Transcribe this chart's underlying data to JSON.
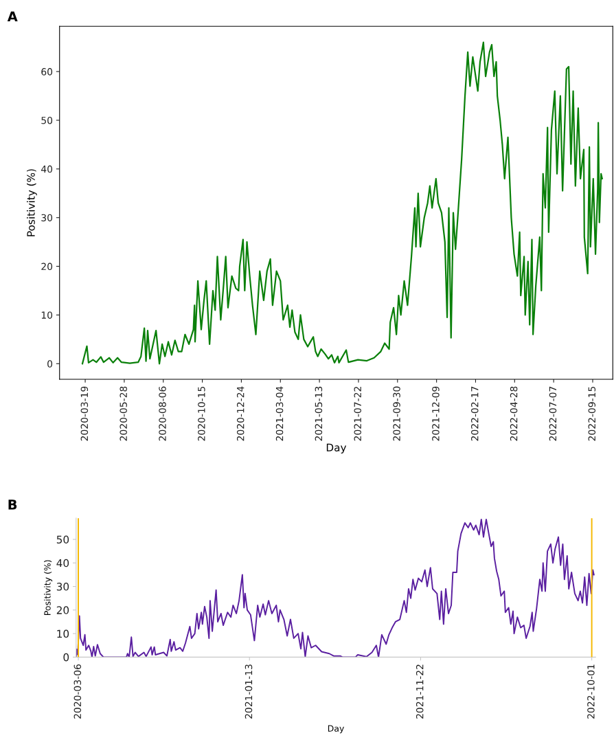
{
  "chart_data": [
    {
      "type": "line",
      "xlabel": "Day",
      "ylabel": "Positivity (%)",
      "annotations": [
        "A"
      ],
      "color": "#0a800a",
      "xlim": [
        "2020-02-02",
        "2022-10-21"
      ],
      "ylim": [
        -3.2,
        69.3
      ],
      "yticks": [
        0,
        10,
        20,
        30,
        40,
        50,
        60
      ],
      "xticks": [
        "2020-03-19",
        "2020-05-28",
        "2020-08-06",
        "2020-10-15",
        "2020-12-24",
        "2021-03-04",
        "2021-05-13",
        "2021-07-22",
        "2021-09-30",
        "2021-12-09",
        "2022-02-17",
        "2022-04-28",
        "2022-07-07",
        "2022-09-15"
      ],
      "x": [
        "2020-03-14",
        "2020-03-22",
        "2020-03-25",
        "2020-04-02",
        "2020-04-08",
        "2020-04-16",
        "2020-04-21",
        "2020-05-01",
        "2020-05-08",
        "2020-05-16",
        "2020-05-23",
        "2020-06-07",
        "2020-06-22",
        "2020-06-27",
        "2020-07-03",
        "2020-07-06",
        "2020-07-09",
        "2020-07-13",
        "2020-07-24",
        "2020-07-30",
        "2020-08-04",
        "2020-08-09",
        "2020-08-15",
        "2020-08-21",
        "2020-08-27",
        "2020-09-02",
        "2020-09-08",
        "2020-09-14",
        "2020-09-21",
        "2020-09-29",
        "2020-10-01",
        "2020-10-02",
        "2020-10-07",
        "2020-10-13",
        "2020-10-18",
        "2020-10-22",
        "2020-10-28",
        "2020-11-03",
        "2020-11-07",
        "2020-11-11",
        "2020-11-17",
        "2020-11-22",
        "2020-11-26",
        "2020-11-30",
        "2020-12-07",
        "2020-12-14",
        "2020-12-19",
        "2020-12-21",
        "2020-12-27",
        "2020-12-30",
        "2021-01-03",
        "2021-01-08",
        "2021-01-13",
        "2021-01-19",
        "2021-01-26",
        "2021-02-02",
        "2021-02-08",
        "2021-02-14",
        "2021-02-18",
        "2021-02-25",
        "2021-03-04",
        "2021-03-09",
        "2021-03-17",
        "2021-03-21",
        "2021-03-25",
        "2021-03-30",
        "2021-04-05",
        "2021-04-09",
        "2021-04-15",
        "2021-04-22",
        "2021-04-27",
        "2021-05-02",
        "2021-05-06",
        "2021-05-10",
        "2021-05-16",
        "2021-05-23",
        "2021-05-29",
        "2021-06-04",
        "2021-06-09",
        "2021-06-15",
        "2021-06-17",
        "2021-06-30",
        "2021-07-04",
        "2021-07-21",
        "2021-08-06",
        "2021-08-19",
        "2021-08-31",
        "2021-09-07",
        "2021-09-15",
        "2021-09-17",
        "2021-09-23",
        "2021-09-28",
        "2021-10-02",
        "2021-10-06",
        "2021-10-12",
        "2021-10-18",
        "2021-10-25",
        "2021-10-31",
        "2021-11-02",
        "2021-11-06",
        "2021-11-10",
        "2021-11-17",
        "2021-11-23",
        "2021-11-27",
        "2021-12-01",
        "2021-12-08",
        "2021-12-12",
        "2021-12-18",
        "2021-12-24",
        "2021-12-28",
        "2021-12-31",
        "2022-01-04",
        "2022-01-08",
        "2022-01-12",
        "2022-01-16",
        "2022-01-23",
        "2022-01-29",
        "2022-02-03",
        "2022-02-07",
        "2022-02-12",
        "2022-02-21",
        "2022-02-25",
        "2022-03-03",
        "2022-03-07",
        "2022-03-14",
        "2022-03-18",
        "2022-03-22",
        "2022-03-26",
        "2022-03-28",
        "2022-04-02",
        "2022-04-06",
        "2022-04-10",
        "2022-04-16",
        "2022-04-22",
        "2022-04-27",
        "2022-05-03",
        "2022-05-07",
        "2022-05-09",
        "2022-05-15",
        "2022-05-17",
        "2022-05-22",
        "2022-05-25",
        "2022-05-29",
        "2022-05-31",
        "2022-06-05",
        "2022-06-12",
        "2022-06-15",
        "2022-06-18",
        "2022-06-22",
        "2022-06-26",
        "2022-06-28",
        "2022-07-03",
        "2022-07-09",
        "2022-07-13",
        "2022-07-19",
        "2022-07-23",
        "2022-07-30",
        "2022-08-03",
        "2022-08-07",
        "2022-08-11",
        "2022-08-15",
        "2022-08-20",
        "2022-08-24",
        "2022-08-30",
        "2022-08-31",
        "2022-09-06",
        "2022-09-09",
        "2022-09-11",
        "2022-09-16",
        "2022-09-20",
        "2022-09-24",
        "2022-09-25",
        "2022-09-27",
        "2022-09-30",
        "2022-10-02"
      ],
      "values": [
        0,
        3.6,
        0.2,
        0.8,
        0.3,
        1.4,
        0.3,
        1.2,
        0.2,
        1.2,
        0.3,
        0.1,
        0.3,
        1.5,
        7.3,
        0.5,
        6.8,
        1,
        6.8,
        0,
        4,
        1.5,
        4.5,
        1.8,
        4.8,
        2.5,
        2.5,
        6,
        4,
        7,
        12,
        4.5,
        17,
        7,
        13,
        17,
        4,
        15,
        11,
        22,
        9,
        16,
        22,
        11.5,
        18,
        15.5,
        15,
        20,
        25.5,
        15,
        25,
        18,
        12,
        6,
        19,
        13,
        19,
        21.5,
        12,
        19,
        17,
        9,
        12,
        7.5,
        11,
        6.5,
        5,
        10,
        5,
        3.5,
        4.5,
        5.5,
        2.5,
        1.5,
        3,
        2,
        1,
        1.8,
        0.2,
        1.5,
        0.2,
        2.8,
        0.3,
        0.8,
        0.6,
        1.2,
        2.5,
        4.2,
        3,
        8.5,
        11.5,
        6,
        14,
        10,
        17,
        12,
        22,
        32,
        24,
        35,
        24,
        30,
        33,
        36.5,
        32,
        38,
        33,
        31,
        25,
        9.5,
        32,
        5.3,
        31,
        23.5,
        30,
        42,
        55,
        64,
        57,
        63,
        56,
        62,
        66,
        59,
        64,
        65.5,
        59,
        62,
        55,
        50,
        45,
        38,
        46.5,
        30,
        22.5,
        18,
        27,
        14,
        22,
        10,
        21,
        8,
        25.5,
        6,
        16,
        26,
        15,
        39,
        32,
        48.5,
        27,
        48,
        56,
        39,
        55,
        35.5,
        60.5,
        61,
        41,
        56,
        36.5,
        52.5,
        38,
        44,
        26,
        18.5,
        44.5,
        24,
        38,
        22.5,
        36,
        49.5,
        29,
        39,
        38
      ]
    },
    {
      "type": "line",
      "xlabel": "Day",
      "ylabel": "Positivity (%)",
      "annotations": [
        "B"
      ],
      "color": "#5a1fa0",
      "xlim": [
        "2020-03-02",
        "2022-10-08"
      ],
      "ylim": [
        0,
        59
      ],
      "yticks": [
        0,
        10,
        20,
        30,
        40,
        50
      ],
      "xticks": [
        "2020-03-06",
        "2021-01-13",
        "2021-11-22",
        "2022-10-01"
      ],
      "ref_lines": [
        {
          "axis": "x",
          "value": "2020-03-06",
          "color": "#f5b800"
        },
        {
          "axis": "x",
          "value": "2022-10-01",
          "color": "#f5b800"
        }
      ],
      "x": [
        "2020-03-02",
        "2020-03-03",
        "2020-03-05",
        "2020-03-08",
        "2020-03-10",
        "2020-03-15",
        "2020-03-18",
        "2020-03-20",
        "2020-03-25",
        "2020-03-29",
        "2020-03-31",
        "2020-04-03",
        "2020-04-06",
        "2020-04-10",
        "2020-04-15",
        "2020-04-21",
        "2020-06-02",
        "2020-06-04",
        "2020-06-07",
        "2020-06-11",
        "2020-06-14",
        "2020-06-18",
        "2020-06-24",
        "2020-07-04",
        "2020-07-08",
        "2020-07-17",
        "2020-07-19",
        "2020-07-23",
        "2020-07-25",
        "2020-08-09",
        "2020-08-15",
        "2020-08-21",
        "2020-08-23",
        "2020-08-28",
        "2020-08-31",
        "2020-09-08",
        "2020-09-13",
        "2020-09-18",
        "2020-09-26",
        "2020-09-29",
        "2020-10-05",
        "2020-10-09",
        "2020-10-12",
        "2020-10-17",
        "2020-10-19",
        "2020-10-23",
        "2020-10-27",
        "2020-10-31",
        "2020-11-02",
        "2020-11-06",
        "2020-11-13",
        "2020-11-16",
        "2020-11-22",
        "2020-11-26",
        "2020-12-04",
        "2020-12-10",
        "2020-12-14",
        "2020-12-20",
        "2020-12-25",
        "2020-12-31",
        "2021-01-03",
        "2021-01-05",
        "2021-01-09",
        "2021-01-15",
        "2021-01-22",
        "2021-01-28",
        "2021-02-01",
        "2021-02-07",
        "2021-02-11",
        "2021-02-17",
        "2021-02-23",
        "2021-03-03",
        "2021-03-07",
        "2021-03-10",
        "2021-03-17",
        "2021-03-23",
        "2021-03-29",
        "2021-04-04",
        "2021-04-12",
        "2021-04-17",
        "2021-04-20",
        "2021-04-25",
        "2021-04-30",
        "2021-05-06",
        "2021-05-14",
        "2021-05-25",
        "2021-06-08",
        "2021-06-16",
        "2021-06-28",
        "2021-07-02",
        "2021-07-26",
        "2021-07-30",
        "2021-08-15",
        "2021-08-25",
        "2021-09-02",
        "2021-09-06",
        "2021-09-12",
        "2021-09-20",
        "2021-09-25",
        "2021-10-01",
        "2021-10-07",
        "2021-10-15",
        "2021-10-23",
        "2021-10-27",
        "2021-10-31",
        "2021-11-04",
        "2021-11-08",
        "2021-11-12",
        "2021-11-18",
        "2021-11-24",
        "2021-11-30",
        "2021-12-04",
        "2021-12-10",
        "2021-12-14",
        "2021-12-22",
        "2021-12-27",
        "2021-12-30",
        "2022-01-03",
        "2022-01-07",
        "2022-01-12",
        "2022-01-17",
        "2022-01-20",
        "2022-01-27",
        "2022-01-29",
        "2022-02-04",
        "2022-02-11",
        "2022-02-17",
        "2022-02-21",
        "2022-02-27",
        "2022-03-03",
        "2022-03-09",
        "2022-03-13",
        "2022-03-17",
        "2022-03-22",
        "2022-03-27",
        "2022-03-31",
        "2022-04-04",
        "2022-04-06",
        "2022-04-10",
        "2022-04-14",
        "2022-04-18",
        "2022-04-24",
        "2022-04-26",
        "2022-05-02",
        "2022-05-06",
        "2022-05-10",
        "2022-05-12",
        "2022-05-18",
        "2022-05-24",
        "2022-05-30",
        "2022-06-03",
        "2022-06-10",
        "2022-06-14",
        "2022-06-16",
        "2022-06-22",
        "2022-06-28",
        "2022-07-02",
        "2022-07-04",
        "2022-07-08",
        "2022-07-12",
        "2022-07-18",
        "2022-07-22",
        "2022-07-26",
        "2022-08-01",
        "2022-08-05",
        "2022-08-09",
        "2022-08-12",
        "2022-08-17",
        "2022-08-20",
        "2022-08-25",
        "2022-08-31",
        "2022-09-06",
        "2022-09-10",
        "2022-09-14",
        "2022-09-18",
        "2022-09-22",
        "2022-09-26",
        "2022-09-30",
        "2022-10-03",
        "2022-10-05"
      ],
      "values": [
        0,
        3.3,
        1,
        17.5,
        8,
        5,
        9.5,
        3,
        5,
        2.5,
        0,
        4.5,
        0.5,
        5.3,
        1.5,
        0,
        0,
        1.5,
        0,
        8.5,
        0.3,
        2,
        0.3,
        2,
        0.3,
        4.3,
        1,
        4.3,
        1,
        2,
        0.5,
        7.5,
        2.5,
        6.5,
        3,
        4,
        2.5,
        6,
        13,
        8,
        10,
        18.5,
        12,
        19,
        14,
        21.5,
        17,
        8,
        24,
        11,
        28.5,
        15,
        18.5,
        13.5,
        19,
        17,
        22,
        18.5,
        24,
        35,
        21,
        27,
        20,
        18,
        7,
        22,
        17,
        22.5,
        18,
        24,
        18.5,
        22,
        15,
        20,
        16,
        9,
        16,
        8,
        10,
        3.5,
        10.5,
        0.2,
        9,
        4,
        5,
        2.3,
        1.5,
        0.5,
        0.5,
        0,
        0,
        1,
        0.2,
        2,
        5,
        0,
        9.5,
        5.5,
        9.5,
        12.5,
        15,
        16,
        24,
        19,
        29,
        25,
        33,
        28.5,
        33.5,
        32,
        37,
        30,
        38,
        29,
        27,
        16,
        28,
        14,
        29,
        18.5,
        22,
        36,
        36,
        45,
        52.5,
        57,
        55,
        57,
        54,
        56,
        52,
        58.5,
        51,
        58.5,
        52,
        47,
        49,
        42,
        36.5,
        33,
        26,
        28,
        19,
        21,
        14,
        19.5,
        10,
        17,
        12.5,
        13.5,
        8,
        13,
        19,
        11,
        20.5,
        33,
        28,
        40,
        28,
        45,
        48,
        40,
        46,
        51,
        39,
        48,
        33,
        43,
        29,
        36,
        27,
        24,
        28,
        23,
        34,
        22,
        35.5,
        27,
        37,
        35
      ]
    }
  ]
}
